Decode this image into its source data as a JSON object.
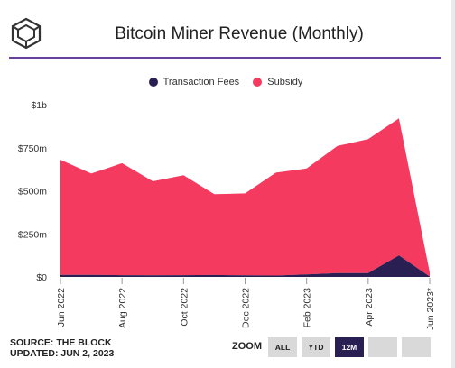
{
  "header": {
    "title": "Bitcoin Miner Revenue (Monthly)"
  },
  "footer": {
    "source_line1": "SOURCE: THE BLOCK",
    "source_line2": "UPDATED: JUN 2, 2023"
  },
  "zoom": {
    "label": "ZOOM",
    "buttons": [
      {
        "label": "ALL",
        "active": false
      },
      {
        "label": "YTD",
        "active": false
      },
      {
        "label": "12M",
        "active": true
      },
      {
        "label": "",
        "active": false
      },
      {
        "label": "",
        "active": false
      }
    ]
  },
  "colors": {
    "fees": "#2a1f52",
    "subsidy": "#f53a5f",
    "accent_rule": "#6a3fa0"
  },
  "chart_data": {
    "type": "area",
    "stacked": true,
    "title": "Bitcoin Miner Revenue (Monthly)",
    "x": [
      "Jun 2022",
      "Jul 2022",
      "Aug 2022",
      "Sep 2022",
      "Oct 2022",
      "Nov 2022",
      "Dec 2022",
      "Jan 2023",
      "Feb 2023",
      "Mar 2023",
      "Apr 2023",
      "May 2023",
      "Jun 2023*"
    ],
    "x_tick_labels": [
      "Jun 2022",
      "Aug 2022",
      "Oct 2022",
      "Dec 2022",
      "Feb 2023",
      "Apr 2023",
      "Jun 2023*"
    ],
    "series": [
      {
        "name": "Transaction Fees",
        "color": "#2a1f52",
        "values": [
          12,
          12,
          10,
          9,
          10,
          11,
          9,
          8,
          14,
          22,
          22,
          125,
          2
        ]
      },
      {
        "name": "Subsidy",
        "color": "#f53a5f",
        "values": [
          668,
          588,
          650,
          546,
          580,
          469,
          476,
          597,
          616,
          738,
          778,
          795,
          24
        ]
      }
    ],
    "yticks": [
      "$0",
      "$250m",
      "$500m",
      "$750m",
      "$1b"
    ],
    "ylim": [
      0,
      1000
    ],
    "grid": false,
    "legend": "top"
  }
}
